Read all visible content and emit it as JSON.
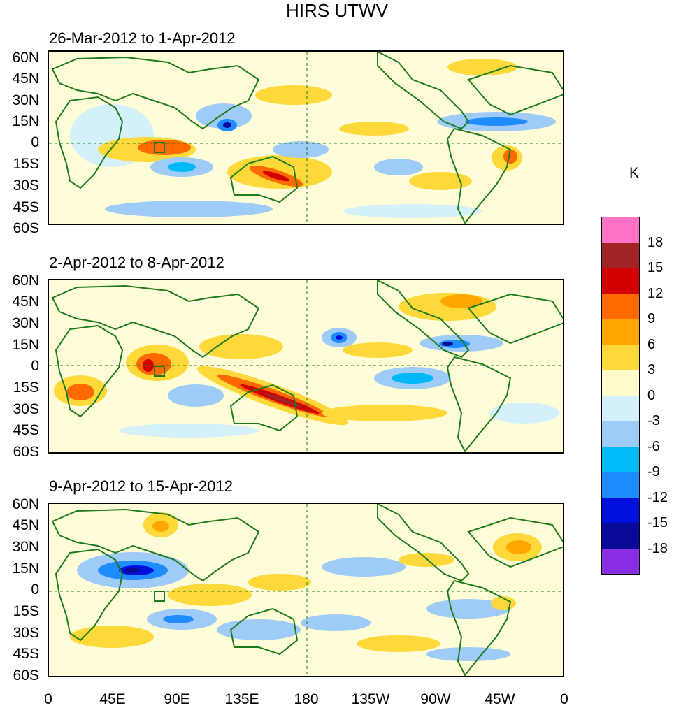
{
  "title": "HIRS UTWV",
  "panels": [
    {
      "title": "26-Mar-2012 to 1-Apr-2012"
    },
    {
      "title": "2-Apr-2012 to 8-Apr-2012"
    },
    {
      "title": "9-Apr-2012 to 15-Apr-2012"
    }
  ],
  "lat_labels": [
    "60N",
    "45N",
    "30N",
    "15N",
    "0",
    "15S",
    "30S",
    "45S",
    "60S"
  ],
  "lon_labels": [
    "0",
    "45E",
    "90E",
    "135E",
    "180",
    "135W",
    "90W",
    "45W",
    "0"
  ],
  "colorbar": {
    "unit": "K",
    "labels": [
      "18",
      "15",
      "12",
      "9",
      "6",
      "3",
      "0",
      "-3",
      "-6",
      "-9",
      "-12",
      "-15",
      "-18"
    ],
    "colors": [
      "#ff73c4",
      "#a22323",
      "#d20000",
      "#ff6a00",
      "#ffa700",
      "#ffd93a",
      "#fffbca",
      "#d4f1fb",
      "#9fcbf9",
      "#00baf8",
      "#1e8bff",
      "#0010dc",
      "#0a0a98",
      "#8a2ee6"
    ]
  },
  "map_style": {
    "coast_color": "#1e7a1e",
    "ocean_fill": "#fefdd7"
  }
}
